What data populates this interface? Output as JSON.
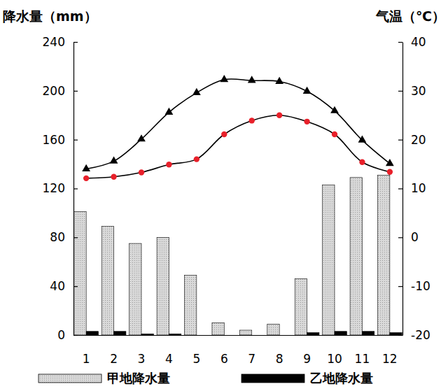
{
  "chart_data": {
    "type": "bar",
    "y_label": "降水量（mm）",
    "y2_label": "气温（℃）",
    "categories": [
      "1",
      "2",
      "3",
      "4",
      "5",
      "6",
      "7",
      "8",
      "9",
      "10",
      "11",
      "12"
    ],
    "series": [
      {
        "name": "甲地降水量",
        "type": "bar",
        "color": "#d9d9d9",
        "values": [
          101,
          89,
          75,
          80,
          49,
          10,
          4,
          9,
          46,
          123,
          129,
          131
        ]
      },
      {
        "name": "乙地降水量",
        "type": "bar",
        "color": "#000000",
        "values": [
          3,
          3,
          1,
          1,
          0,
          0,
          0,
          0,
          2,
          3,
          3,
          2
        ]
      },
      {
        "type": "line",
        "axis": "y2",
        "color": "#000000",
        "marker": "triangle",
        "values": [
          14,
          15.6,
          20.1,
          25.6,
          29.6,
          32.3,
          32.1,
          31.9,
          29.9,
          25.9,
          19.9,
          15.1
        ]
      },
      {
        "type": "line",
        "axis": "y2",
        "color": "#e8202a",
        "marker": "circle",
        "values": [
          12.1,
          12.4,
          13.3,
          14.9,
          16,
          21.1,
          23.9,
          25,
          23.7,
          21.1,
          15.4,
          13.4
        ]
      }
    ],
    "ylim": [
      0,
      240
    ],
    "yticks": [
      0,
      40,
      80,
      120,
      160,
      200,
      240
    ],
    "y2lim": [
      -20,
      40
    ],
    "y2ticks": [
      -20,
      -10,
      0,
      10,
      20,
      30,
      40
    ],
    "grid": false,
    "legend": "bottom"
  }
}
